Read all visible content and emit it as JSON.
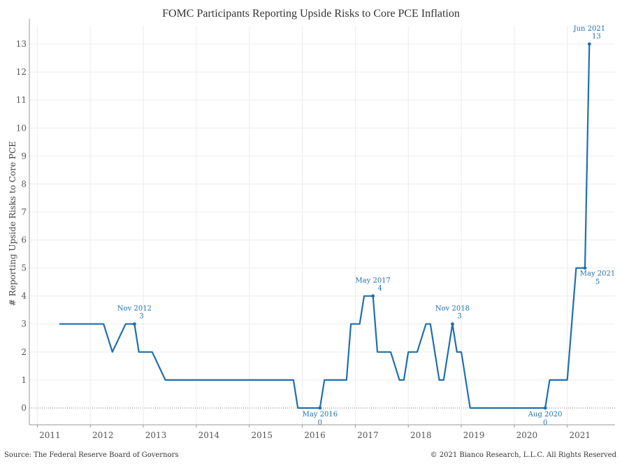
{
  "chart_data": {
    "type": "line",
    "title": "FOMC Participants Reporting Upside Risks to Core PCE Inflation",
    "ylabel": "# Reporting Upside Risks to Core PCE",
    "xlabel": "",
    "xlim": [
      2010.85,
      2021.9
    ],
    "ylim": [
      -0.6,
      13.65
    ],
    "x_ticks": [
      "2011",
      "2012",
      "2013",
      "2014",
      "2015",
      "2016",
      "2017",
      "2018",
      "2019",
      "2020",
      "2021"
    ],
    "y_ticks": [
      0,
      1,
      2,
      3,
      4,
      5,
      6,
      7,
      8,
      9,
      10,
      11,
      12,
      13
    ],
    "zero_line": "dotted",
    "grid": true,
    "color": "#1f6fb0",
    "series": [
      {
        "points": [
          [
            "2011-06-01",
            3
          ],
          [
            "2011-09-01",
            3
          ],
          [
            "2011-11-01",
            3
          ],
          [
            "2012-01-01",
            3
          ],
          [
            "2012-04-01",
            3
          ],
          [
            "2012-06-01",
            2
          ],
          [
            "2012-09-01",
            3
          ],
          [
            "2012-11-01",
            3
          ],
          [
            "2012-12-01",
            2
          ],
          [
            "2013-03-01",
            2
          ],
          [
            "2013-06-01",
            1
          ],
          [
            "2013-09-01",
            1
          ],
          [
            "2013-11-01",
            1
          ],
          [
            "2013-12-01",
            1
          ],
          [
            "2014-03-01",
            1
          ],
          [
            "2014-06-01",
            1
          ],
          [
            "2014-09-01",
            1
          ],
          [
            "2014-11-01",
            1
          ],
          [
            "2014-12-01",
            1
          ],
          [
            "2015-03-01",
            1
          ],
          [
            "2015-06-01",
            1
          ],
          [
            "2015-09-01",
            1
          ],
          [
            "2015-11-01",
            1
          ],
          [
            "2015-12-01",
            0
          ],
          [
            "2016-03-01",
            0
          ],
          [
            "2016-05-01",
            0
          ],
          [
            "2016-06-01",
            1
          ],
          [
            "2016-09-01",
            1
          ],
          [
            "2016-11-01",
            1
          ],
          [
            "2016-12-01",
            3
          ],
          [
            "2017-02-01",
            3
          ],
          [
            "2017-03-01",
            4
          ],
          [
            "2017-05-01",
            4
          ],
          [
            "2017-06-01",
            2
          ],
          [
            "2017-09-01",
            2
          ],
          [
            "2017-11-01",
            1
          ],
          [
            "2017-12-01",
            1
          ],
          [
            "2018-01-01",
            2
          ],
          [
            "2018-03-01",
            2
          ],
          [
            "2018-05-01",
            3
          ],
          [
            "2018-06-01",
            3
          ],
          [
            "2018-08-01",
            1
          ],
          [
            "2018-09-01",
            1
          ],
          [
            "2018-11-01",
            3
          ],
          [
            "2018-12-01",
            2
          ],
          [
            "2019-01-01",
            2
          ],
          [
            "2019-03-01",
            0
          ],
          [
            "2019-06-01",
            0
          ],
          [
            "2019-09-01",
            0
          ],
          [
            "2019-12-01",
            0
          ],
          [
            "2020-03-01",
            0
          ],
          [
            "2020-06-01",
            0
          ],
          [
            "2020-08-01",
            0
          ],
          [
            "2020-09-01",
            1
          ],
          [
            "2020-12-01",
            1
          ],
          [
            "2021-01-01",
            1
          ],
          [
            "2021-03-01",
            5
          ],
          [
            "2021-05-01",
            5
          ],
          [
            "2021-06-01",
            13
          ]
        ]
      }
    ],
    "annotations": [
      {
        "date": "Nov 2012",
        "value": "3",
        "x": "2012-11-01",
        "y": 3,
        "pos": "above"
      },
      {
        "date": "May 2016",
        "value": "0",
        "x": "2016-05-01",
        "y": 0,
        "pos": "below"
      },
      {
        "date": "May 2017",
        "value": "4",
        "x": "2017-05-01",
        "y": 4,
        "pos": "above"
      },
      {
        "date": "Nov 2018",
        "value": "3",
        "x": "2018-11-01",
        "y": 3,
        "pos": "above"
      },
      {
        "date": "Aug 2020",
        "value": "0",
        "x": "2020-08-01",
        "y": 0,
        "pos": "below"
      },
      {
        "date": "May 2021",
        "value": "5",
        "x": "2021-05-01",
        "y": 5,
        "pos": "right-below"
      },
      {
        "date": "Jun 2021",
        "value": "13",
        "x": "2021-06-01",
        "y": 13,
        "pos": "above"
      }
    ]
  },
  "footer": {
    "source": "Source: The Federal Reserve Board of Governors",
    "copyright": "© 2021 Bianco Research, L.L.C. All Rights Reserved"
  }
}
